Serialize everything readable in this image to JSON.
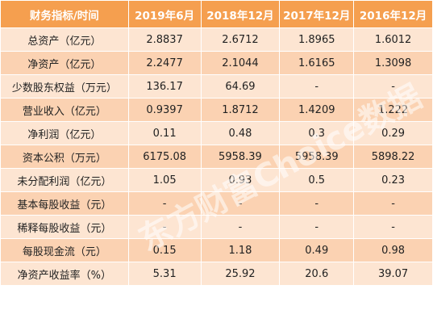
{
  "table": {
    "headers": [
      "财务指标/时间",
      "2019年6月",
      "2018年12月",
      "2017年12月",
      "2016年12月"
    ],
    "rows": [
      [
        "总资产（亿元）",
        "2.8837",
        "2.6712",
        "1.8965",
        "1.6012"
      ],
      [
        "净资产（亿元）",
        "2.2477",
        "2.1044",
        "1.6165",
        "1.3098"
      ],
      [
        "少数股东权益（万元）",
        "136.17",
        "64.69",
        "-",
        "-"
      ],
      [
        "营业收入（亿元）",
        "0.9397",
        "1.8712",
        "1.4209",
        "1.222"
      ],
      [
        "净利润（亿元）",
        "0.11",
        "0.48",
        "0.3",
        "0.29"
      ],
      [
        "资本公积（万元）",
        "6175.08",
        "5958.39",
        "5958.39",
        "5898.22"
      ],
      [
        "未分配利润（亿元）",
        "1.05",
        "0.93",
        "0.5",
        "0.23"
      ],
      [
        "基本每股收益（元）",
        "-",
        "-",
        "-",
        "-"
      ],
      [
        "稀释每股收益（元）",
        "-",
        "-",
        "-",
        "-"
      ],
      [
        "每股现金流（元）",
        "0.15",
        "1.18",
        "0.49",
        "0.98"
      ],
      [
        "净资产收益率（%）",
        "5.31",
        "25.92",
        "20.6",
        "39.07"
      ]
    ]
  },
  "watermark": "东方财富Choice数据",
  "colors": {
    "header_bg": "#f59f4f",
    "row_light": "#fde5d2",
    "row_dark": "#fbd2b2",
    "border": "#ffffff"
  }
}
